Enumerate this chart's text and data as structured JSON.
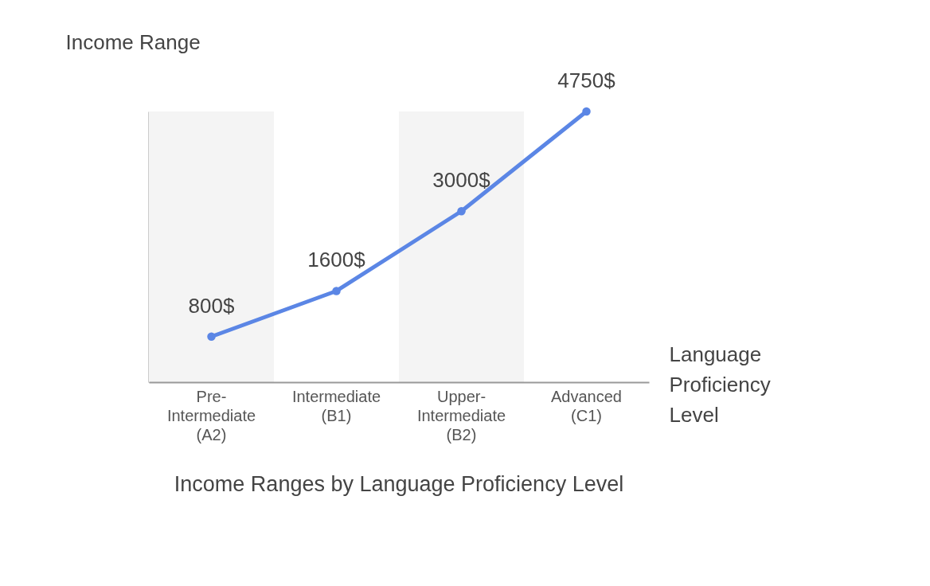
{
  "chart_data": {
    "type": "line",
    "title": "Income Ranges by Language Proficiency Level",
    "xlabel": "Language Proficiency Level",
    "ylabel": "Income Range",
    "categories": [
      "Pre-Intermediate (A2)",
      "Intermediate (B1)",
      "Upper-Intermediate (B2)",
      "Advanced (C1)"
    ],
    "series": [
      {
        "color": "#5b86e5",
        "values": [
          800,
          1600,
          3000,
          4750
        ],
        "value_labels": [
          "800$",
          "1600$",
          "3000$",
          "4750$"
        ]
      }
    ],
    "marker": "circle",
    "line_style": "solid",
    "grid": false,
    "bands": [
      {
        "axis": "x",
        "from": "Pre-Intermediate (A2)",
        "to": "Pre-Intermediate (A2)",
        "color": "#f4f4f4"
      },
      {
        "axis": "x",
        "from": "Upper-Intermediate (B2)",
        "to": "Upper-Intermediate (B2)",
        "color": "#f4f4f4"
      }
    ]
  }
}
